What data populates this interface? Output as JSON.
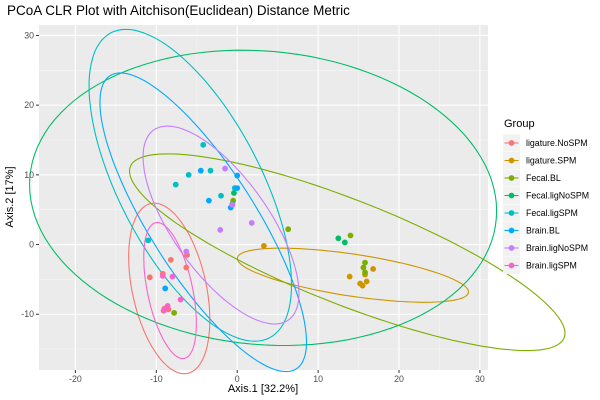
{
  "chart_data": {
    "type": "scatter",
    "title": "PCoA CLR Plot with Aitchison(Euclidean) Distance Metric",
    "xlabel": "Axis.1   [32.2%]",
    "ylabel": "Axis.2   [17%]",
    "xlim": [
      -24.5,
      31
    ],
    "ylim": [
      -18,
      31.5
    ],
    "x_ticks": [
      -20,
      -10,
      0,
      10,
      20,
      30
    ],
    "y_ticks": [
      -10,
      0,
      10,
      20,
      30
    ],
    "grid": true,
    "legend": {
      "title": "Group",
      "position": "right"
    },
    "series": [
      {
        "name": "ligature.NoSPM",
        "color": "#F8766D",
        "points": [
          [
            -9.2,
            -4.2
          ],
          [
            -8.2,
            -2.2
          ],
          [
            -6.2,
            -1.5
          ],
          [
            -6.3,
            -3.3
          ],
          [
            -9.0,
            -9.2
          ],
          [
            -8.5,
            -9.3
          ],
          [
            -9.1,
            -9.5
          ],
          [
            -10.8,
            -4.7
          ]
        ],
        "ellipse": {
          "center": [
            -8.4,
            -6.3
          ],
          "rx": 4.6,
          "ry": 12.4,
          "angle": 10
        }
      },
      {
        "name": "ligature.SPM",
        "color": "#CD9600",
        "points": [
          [
            3.3,
            -0.2
          ],
          [
            13.9,
            -4.6
          ],
          [
            15.8,
            -4.3
          ],
          [
            16.8,
            -3.5
          ],
          [
            15.2,
            -5.6
          ],
          [
            15.5,
            -5.9
          ],
          [
            16.0,
            -5.3
          ]
        ],
        "ellipse": {
          "center": [
            14.3,
            -4.4
          ],
          "rx": 14.5,
          "ry": 3.0,
          "angle": -10
        }
      },
      {
        "name": "Fecal.BL",
        "color": "#7CAE00",
        "points": [
          [
            6.3,
            2.2
          ],
          [
            14.0,
            1.3
          ],
          [
            15.8,
            -2.6
          ],
          [
            15.6,
            -3.3
          ],
          [
            15.8,
            -4.0
          ],
          [
            -7.8,
            -9.8
          ],
          [
            -0.5,
            6.3
          ]
        ],
        "ellipse": {
          "center": [
            13.6,
            -1.1
          ],
          "rx": 29.5,
          "ry": 7.3,
          "angle": -25
        }
      },
      {
        "name": "Fecal.ligNoSPM",
        "color": "#00BE67",
        "points": [
          [
            12.5,
            0.9
          ],
          [
            13.3,
            0.3
          ],
          [
            -0.4,
            7.4
          ],
          [
            -0.6,
            5.8
          ]
        ],
        "ellipse": {
          "center": [
            3.2,
            6.7
          ],
          "rx": 29.0,
          "ry": 21.0,
          "angle": -8
        }
      },
      {
        "name": "Fecal.ligSPM",
        "color": "#00BFC4",
        "points": [
          [
            -11.0,
            0.6
          ],
          [
            -7.6,
            8.6
          ],
          [
            -3.3,
            10.6
          ],
          [
            -0.3,
            8.1
          ],
          [
            -4.2,
            14.3
          ],
          [
            -2.0,
            7.0
          ],
          [
            -6.0,
            10.0
          ]
        ],
        "ellipse": {
          "center": [
            -5.8,
            8.5
          ],
          "rx": 9.0,
          "ry": 24.0,
          "angle": 23
        }
      },
      {
        "name": "Brain.BL",
        "color": "#00A9FF",
        "points": [
          [
            -8.9,
            -6.3
          ],
          [
            -3.5,
            6.3
          ],
          [
            -0.8,
            5.3
          ],
          [
            0.0,
            9.9
          ],
          [
            0.0,
            8.1
          ],
          [
            -4.5,
            10.6
          ]
        ],
        "ellipse": {
          "center": [
            -4.2,
            3.2
          ],
          "rx": 6.8,
          "ry": 24.0,
          "angle": 28
        }
      },
      {
        "name": "Brain.ligNoSPM",
        "color": "#C77CFF",
        "points": [
          [
            -1.5,
            10.9
          ],
          [
            -6.3,
            -1.0
          ],
          [
            -2.1,
            2.1
          ],
          [
            1.8,
            3.1
          ],
          [
            -0.6,
            5.7
          ]
        ],
        "ellipse": {
          "center": [
            -2.0,
            2.8
          ],
          "rx": 6.2,
          "ry": 16.0,
          "angle": 30
        }
      },
      {
        "name": "Brain.ligSPM",
        "color": "#FF61CC",
        "points": [
          [
            -9.2,
            -4.5
          ],
          [
            -7.0,
            -7.9
          ],
          [
            -8.0,
            -4.6
          ],
          [
            -8.6,
            -8.8
          ],
          [
            -9.0,
            -9.4
          ]
        ],
        "ellipse": {
          "center": [
            -8.3,
            -6.6
          ],
          "rx": 2.8,
          "ry": 9.9,
          "angle": 10
        }
      }
    ]
  }
}
